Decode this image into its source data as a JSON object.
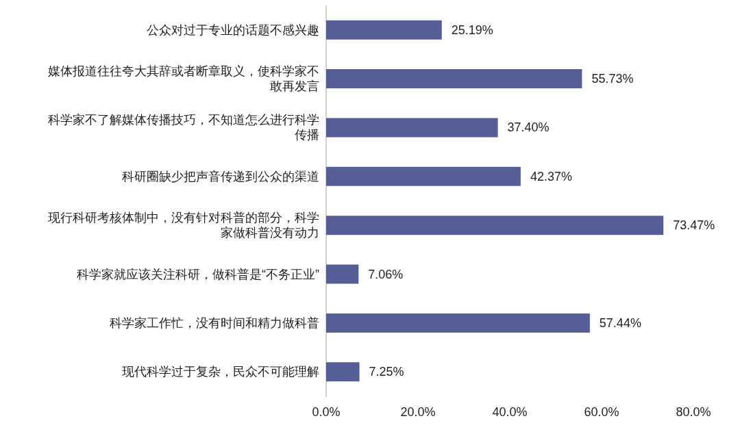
{
  "chart_data": {
    "type": "bar",
    "orientation": "horizontal",
    "categories": [
      "公众对过于专业的话题不感兴趣",
      "媒体报道往往夸大其辞或者断章取义，使科学家不敢再发言",
      "科学家不了解媒体传播技巧，不知道怎么进行科学传播",
      "科研圈缺少把声音传递到公众的渠道",
      "现行科研考核体制中，没有针对科普的部分，科学家做科普没有动力",
      "科学家就应该关注科研，做科普是“不务正业”",
      "科学家工作忙，没有时间和精力做科普",
      "现代科学过于复杂，民众不可能理解"
    ],
    "values": [
      25.19,
      55.73,
      37.4,
      42.37,
      73.47,
      7.06,
      57.44,
      7.25
    ],
    "value_labels": [
      "25.19%",
      "55.73%",
      "37.40%",
      "42.37%",
      "73.47%",
      "7.06%",
      "57.44%",
      "7.25%"
    ],
    "color": "#565e96",
    "xlim": [
      0,
      80
    ],
    "xticks": [
      {
        "value": 0,
        "label": "0.0%"
      },
      {
        "value": 20,
        "label": "20.0%"
      },
      {
        "value": 40,
        "label": "40.0%"
      },
      {
        "value": 60,
        "label": "60.0%"
      },
      {
        "value": 80,
        "label": "80.0%"
      }
    ],
    "grid": false
  }
}
